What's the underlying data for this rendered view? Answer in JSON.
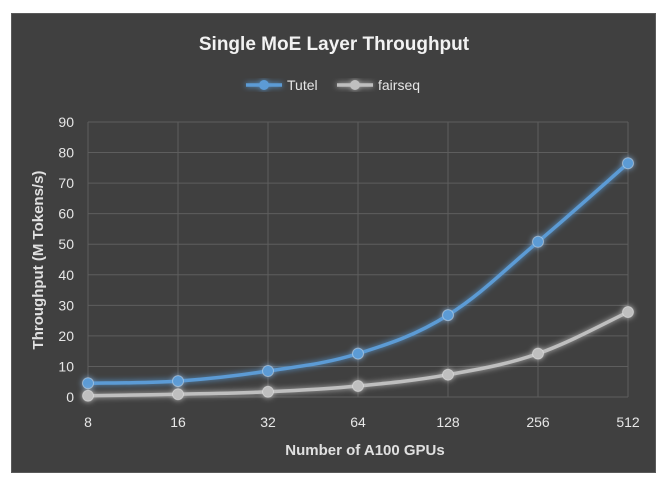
{
  "chart_data": {
    "type": "line",
    "title": "Single MoE Layer Throughput",
    "xlabel": "Number of A100 GPUs",
    "ylabel": "Throughput (M Tokens/s)",
    "categories": [
      "8",
      "16",
      "32",
      "64",
      "128",
      "256",
      "512"
    ],
    "ylim": [
      0,
      90
    ],
    "yticks": [
      0,
      10,
      20,
      30,
      40,
      50,
      60,
      70,
      80,
      90
    ],
    "grid": true,
    "legend_position": "top",
    "series": [
      {
        "name": "Tutel",
        "color": "#5b9bd5",
        "values": [
          4.5,
          5.2,
          8.5,
          14.2,
          26.8,
          50.8,
          76.5
        ]
      },
      {
        "name": "fairseq",
        "color": "#bfbfbf",
        "values": [
          0.4,
          0.9,
          1.7,
          3.6,
          7.3,
          14.2,
          27.8
        ]
      }
    ]
  }
}
